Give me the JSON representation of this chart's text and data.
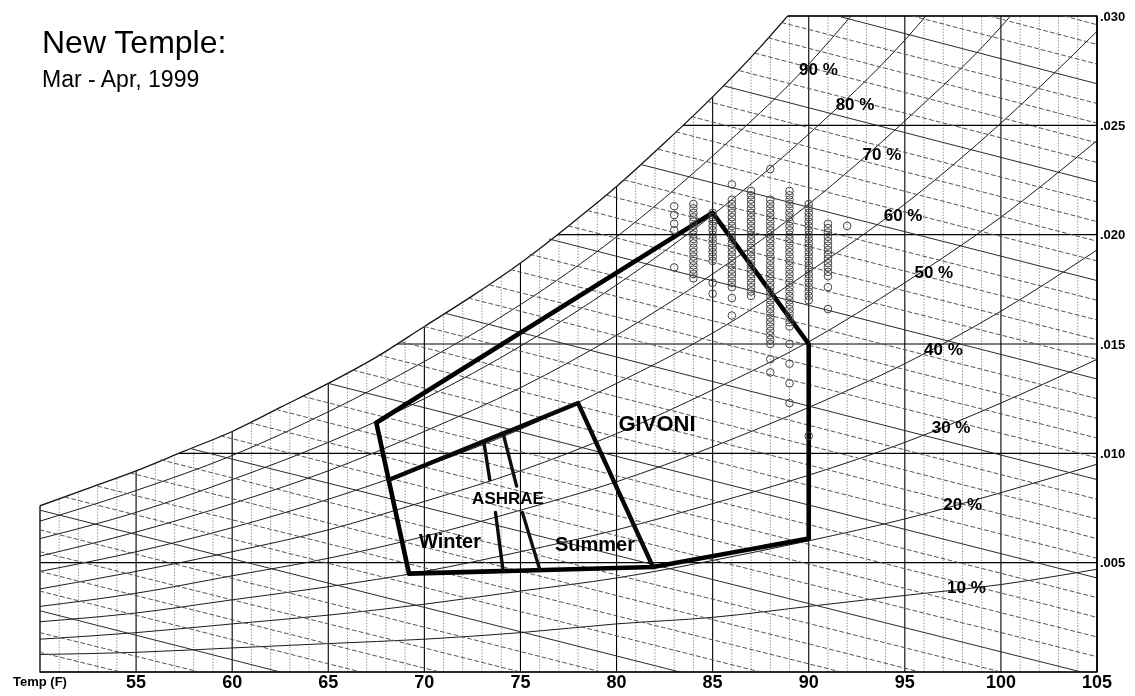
{
  "chart_data": {
    "type": "scatter",
    "title": "New Temple:",
    "subtitle": "Mar - Apr, 1999",
    "xlabel": "Temp (F)",
    "xlim": [
      50,
      105
    ],
    "ylim": [
      0,
      0.03
    ],
    "xticks": [
      {
        "value": 51,
        "label": null
      },
      {
        "value": 52,
        "label": null
      },
      {
        "value": 53,
        "label": null
      },
      {
        "value": 54,
        "label": null
      },
      55,
      {
        "value": 56,
        "label": null
      },
      {
        "value": 57,
        "label": null
      },
      {
        "value": 58,
        "label": null
      },
      {
        "value": 59,
        "label": null
      },
      60,
      {
        "value": 61,
        "label": null
      },
      {
        "value": 62,
        "label": null
      },
      {
        "value": 63,
        "label": null
      },
      {
        "value": 64,
        "label": null
      },
      65,
      {
        "value": 66,
        "label": null
      },
      {
        "value": 67,
        "label": null
      },
      {
        "value": 68,
        "label": null
      },
      {
        "value": 69,
        "label": null
      },
      70,
      {
        "value": 71,
        "label": null
      },
      {
        "value": 72,
        "label": null
      },
      {
        "value": 73,
        "label": null
      },
      {
        "value": 74,
        "label": null
      },
      75,
      {
        "value": 76,
        "label": null
      },
      {
        "value": 77,
        "label": null
      },
      {
        "value": 78,
        "label": null
      },
      {
        "value": 79,
        "label": null
      },
      80,
      {
        "value": 81,
        "label": null
      },
      {
        "value": 82,
        "label": null
      },
      {
        "value": 83,
        "label": null
      },
      {
        "value": 84,
        "label": null
      },
      85,
      {
        "value": 86,
        "label": null
      },
      {
        "value": 87,
        "label": null
      },
      {
        "value": 88,
        "label": null
      },
      {
        "value": 89,
        "label": null
      },
      90,
      {
        "value": 91,
        "label": null
      },
      {
        "value": 92,
        "label": null
      },
      {
        "value": 93,
        "label": null
      },
      {
        "value": 94,
        "label": null
      },
      95,
      {
        "value": 96,
        "label": null
      },
      {
        "value": 97,
        "label": null
      },
      {
        "value": 98,
        "label": null
      },
      {
        "value": 99,
        "label": null
      },
      100,
      {
        "value": 101,
        "label": null
      },
      {
        "value": 102,
        "label": null
      },
      {
        "value": 103,
        "label": null
      },
      {
        "value": 104,
        "label": null
      },
      105
    ],
    "yticks": [
      {
        "value": 0.005,
        "label": ".005"
      },
      {
        "value": 0.01,
        "label": ".010"
      },
      {
        "value": 0.015,
        "label": ".015"
      },
      {
        "value": 0.02,
        "label": ".020"
      },
      {
        "value": 0.025,
        "label": ".025"
      },
      {
        "value": 0.03,
        "label": ".030"
      }
    ],
    "grid": true,
    "series": [
      {
        "type": "line",
        "color": "#141414",
        "x": [
          50,
          52.5,
          55,
          57.5,
          60,
          62.5,
          65,
          67.5,
          70,
          72.5,
          75,
          77.5,
          80,
          82.5,
          85,
          87.5,
          88.9
        ],
        "values": [
          0.0076,
          0.0084,
          0.0092,
          0.0101,
          0.011,
          0.0121,
          0.0132,
          0.0144,
          0.0158,
          0.0172,
          0.0187,
          0.0204,
          0.0222,
          0.0242,
          0.0263,
          0.0286,
          0.03
        ]
      },
      {
        "type": "line",
        "color": "#1c1c1c",
        "x": [
          50,
          55,
          60,
          65,
          70,
          75,
          80,
          85,
          90,
          95,
          100,
          105
        ],
        "values": [
          0.0008,
          0.0009,
          0.0011,
          0.0013,
          0.0015,
          0.0018,
          0.0022,
          0.0025,
          0.003,
          0.0035,
          0.004,
          0.0047
        ]
      },
      {
        "type": "line",
        "color": "#1c1c1c",
        "x": [
          50,
          55,
          60,
          65,
          70,
          75,
          80,
          85,
          90,
          95,
          100,
          105
        ],
        "values": [
          0.0015,
          0.0018,
          0.0022,
          0.0026,
          0.0031,
          0.0037,
          0.0043,
          0.0051,
          0.006,
          0.007,
          0.0082,
          0.0095
        ]
      },
      {
        "type": "line",
        "color": "#1c1c1c",
        "x": [
          50,
          55,
          60,
          65,
          70,
          75,
          80,
          85,
          90,
          95,
          100,
          105
        ],
        "values": [
          0.0023,
          0.0027,
          0.0033,
          0.0039,
          0.0046,
          0.0055,
          0.0065,
          0.0077,
          0.009,
          0.0105,
          0.0123,
          0.0143
        ]
      },
      {
        "type": "line",
        "color": "#1c1c1c",
        "x": [
          50,
          55,
          60,
          65,
          70,
          75,
          80,
          85,
          90,
          95,
          100,
          105
        ],
        "values": [
          0.003,
          0.0036,
          0.0044,
          0.0052,
          0.0062,
          0.0074,
          0.0087,
          0.0103,
          0.0121,
          0.0141,
          0.0165,
          0.0193
        ]
      },
      {
        "type": "line",
        "color": "#1c1c1c",
        "x": [
          50,
          55,
          60,
          65,
          70,
          75,
          80,
          85,
          90,
          95,
          100,
          105
        ],
        "values": [
          0.0038,
          0.0046,
          0.0055,
          0.0065,
          0.0078,
          0.0092,
          0.0109,
          0.0129,
          0.0151,
          0.0178,
          0.0208,
          0.0243
        ]
      },
      {
        "type": "line",
        "color": "#1c1c1c",
        "x": [
          50,
          55,
          60,
          65,
          70,
          75,
          80,
          85,
          90,
          95,
          100,
          105
        ],
        "values": [
          0.0046,
          0.0055,
          0.0066,
          0.0079,
          0.0094,
          0.0111,
          0.0132,
          0.0155,
          0.0183,
          0.0214,
          0.0251,
          0.0293
        ]
      },
      {
        "type": "line",
        "color": "#1c1c1c",
        "x": [
          50,
          55,
          60,
          65,
          70,
          75,
          80,
          85,
          90,
          95,
          100,
          100.5
        ],
        "values": [
          0.0053,
          0.0064,
          0.0077,
          0.0092,
          0.011,
          0.013,
          0.0154,
          0.0182,
          0.0214,
          0.0252,
          0.0295,
          0.03
        ]
      },
      {
        "type": "line",
        "color": "#1c1c1c",
        "x": [
          50,
          55,
          60,
          65,
          70,
          75,
          80,
          85,
          90,
          95,
          96.1
        ],
        "values": [
          0.0061,
          0.0073,
          0.0088,
          0.0105,
          0.0125,
          0.0149,
          0.0177,
          0.0209,
          0.0246,
          0.0289,
          0.03
        ]
      },
      {
        "type": "line",
        "color": "#1c1c1c",
        "x": [
          50,
          55,
          60,
          65,
          70,
          75,
          80,
          85,
          90,
          92.2
        ],
        "values": [
          0.0069,
          0.0083,
          0.0099,
          0.0119,
          0.0142,
          0.0168,
          0.0199,
          0.0236,
          0.0278,
          0.03
        ]
      },
      {
        "type": "line",
        "color": "#2a2a2a",
        "x": [
          50,
          62.5
        ],
        "values": [
          0.0028,
          0
        ]
      },
      {
        "type": "line",
        "color": "#2a2a2a",
        "x": [
          50,
          83.3
        ],
        "values": [
          0.0074,
          0
        ]
      },
      {
        "type": "line",
        "color": "#2a2a2a",
        "x": [
          57.9,
          104.2
        ],
        "values": [
          0.0102,
          0
        ]
      },
      {
        "type": "line",
        "color": "#2a2a2a",
        "x": [
          65,
          105
        ],
        "values": [
          0.0132,
          0.0043
        ]
      },
      {
        "type": "line",
        "color": "#2a2a2a",
        "x": [
          71.1,
          105
        ],
        "values": [
          0.0164,
          0.0088
        ]
      },
      {
        "type": "line",
        "color": "#2a2a2a",
        "x": [
          76.5,
          105
        ],
        "values": [
          0.0198,
          0.0134
        ]
      },
      {
        "type": "line",
        "color": "#2a2a2a",
        "x": [
          81.3,
          105
        ],
        "values": [
          0.0232,
          0.0179
        ]
      },
      {
        "type": "line",
        "color": "#2a2a2a",
        "x": [
          85.6,
          105
        ],
        "values": [
          0.0268,
          0.0224
        ]
      },
      {
        "type": "line",
        "color": "#2a2a2a",
        "x": [
          91.5,
          105
        ],
        "values": [
          0.03,
          0.0269
        ]
      },
      {
        "type": "line",
        "line_style": "dashed",
        "color": "#555555",
        "x": [
          50,
          54.2
        ],
        "values": [
          0.0009,
          0
        ]
      },
      {
        "type": "line",
        "line_style": "dashed",
        "color": "#555555",
        "x": [
          50,
          58.3
        ],
        "values": [
          0.0018,
          0
        ]
      },
      {
        "type": "line",
        "line_style": "dashed",
        "color": "#555555",
        "x": [
          50,
          66.7
        ],
        "values": [
          0.0037,
          0
        ]
      },
      {
        "type": "line",
        "line_style": "dashed",
        "color": "#555555",
        "x": [
          50,
          70.8
        ],
        "values": [
          0.0046,
          0
        ]
      },
      {
        "type": "line",
        "line_style": "dashed",
        "color": "#555555",
        "x": [
          50,
          75
        ],
        "values": [
          0.0055,
          0
        ]
      },
      {
        "type": "line",
        "line_style": "dashed",
        "color": "#555555",
        "x": [
          50,
          79.2
        ],
        "values": [
          0.0065,
          0
        ]
      },
      {
        "type": "line",
        "line_style": "dashed",
        "color": "#555555",
        "x": [
          51.3,
          87.5
        ],
        "values": [
          0.008,
          0
        ]
      },
      {
        "type": "line",
        "line_style": "dashed",
        "color": "#555555",
        "x": [
          53,
          91.7
        ],
        "values": [
          0.0085,
          0
        ]
      },
      {
        "type": "line",
        "line_style": "dashed",
        "color": "#555555",
        "x": [
          54.7,
          95.8
        ],
        "values": [
          0.0091,
          0
        ]
      },
      {
        "type": "line",
        "line_style": "dashed",
        "color": "#555555",
        "x": [
          56.3,
          100
        ],
        "values": [
          0.0097,
          0
        ]
      },
      {
        "type": "line",
        "line_style": "dashed",
        "color": "#555555",
        "x": [
          59.4,
          105
        ],
        "values": [
          0.0108,
          0.0007
        ]
      },
      {
        "type": "line",
        "line_style": "dashed",
        "color": "#555555",
        "x": [
          60.9,
          105
        ],
        "values": [
          0.0114,
          0.0016
        ]
      },
      {
        "type": "line",
        "line_style": "dashed",
        "color": "#555555",
        "x": [
          62.3,
          105
        ],
        "values": [
          0.012,
          0.0025
        ]
      },
      {
        "type": "line",
        "line_style": "dashed",
        "color": "#555555",
        "x": [
          63.7,
          105
        ],
        "values": [
          0.0126,
          0.0034
        ]
      },
      {
        "type": "line",
        "line_style": "dashed",
        "color": "#555555",
        "x": [
          66.3,
          105
        ],
        "values": [
          0.0138,
          0.0052
        ]
      },
      {
        "type": "line",
        "line_style": "dashed",
        "color": "#555555",
        "x": [
          67.6,
          105
        ],
        "values": [
          0.0145,
          0.0061
        ]
      },
      {
        "type": "line",
        "line_style": "dashed",
        "color": "#555555",
        "x": [
          68.8,
          105
        ],
        "values": [
          0.0151,
          0.007
        ]
      },
      {
        "type": "line",
        "line_style": "dashed",
        "color": "#555555",
        "x": [
          70,
          105
        ],
        "values": [
          0.0158,
          0.0079
        ]
      },
      {
        "type": "line",
        "line_style": "dashed",
        "color": "#555555",
        "x": [
          72.3,
          105
        ],
        "values": [
          0.0171,
          0.0098
        ]
      },
      {
        "type": "line",
        "line_style": "dashed",
        "color": "#555555",
        "x": [
          73.4,
          105
        ],
        "values": [
          0.0177,
          0.0107
        ]
      },
      {
        "type": "line",
        "line_style": "dashed",
        "color": "#555555",
        "x": [
          74.5,
          105
        ],
        "values": [
          0.0184,
          0.0116
        ]
      },
      {
        "type": "line",
        "line_style": "dashed",
        "color": "#555555",
        "x": [
          75.5,
          105
        ],
        "values": [
          0.0191,
          0.0125
        ]
      },
      {
        "type": "line",
        "line_style": "dashed",
        "color": "#555555",
        "x": [
          77.5,
          105
        ],
        "values": [
          0.0204,
          0.0143
        ]
      },
      {
        "type": "line",
        "line_style": "dashed",
        "color": "#555555",
        "x": [
          78.5,
          105
        ],
        "values": [
          0.0211,
          0.0152
        ]
      },
      {
        "type": "line",
        "line_style": "dashed",
        "color": "#555555",
        "x": [
          79.5,
          105
        ],
        "values": [
          0.0218,
          0.0161
        ]
      },
      {
        "type": "line",
        "line_style": "dashed",
        "color": "#555555",
        "x": [
          80.4,
          105
        ],
        "values": [
          0.0225,
          0.017
        ]
      },
      {
        "type": "line",
        "line_style": "dashed",
        "color": "#555555",
        "x": [
          82.2,
          105
        ],
        "values": [
          0.0239,
          0.0188
        ]
      },
      {
        "type": "line",
        "line_style": "dashed",
        "color": "#555555",
        "x": [
          83.1,
          105
        ],
        "values": [
          0.0247,
          0.0197
        ]
      },
      {
        "type": "line",
        "line_style": "dashed",
        "color": "#555555",
        "x": [
          83.9,
          105
        ],
        "values": [
          0.0254,
          0.0206
        ]
      },
      {
        "type": "line",
        "line_style": "dashed",
        "color": "#555555",
        "x": [
          84.7,
          105
        ],
        "values": [
          0.0261,
          0.0215
        ]
      },
      {
        "type": "line",
        "line_style": "dashed",
        "color": "#555555",
        "x": [
          86.4,
          105
        ],
        "values": [
          0.0275,
          0.0233
        ]
      },
      {
        "type": "line",
        "line_style": "dashed",
        "color": "#555555",
        "x": [
          87.2,
          105
        ],
        "values": [
          0.0283,
          0.0242
        ]
      },
      {
        "type": "line",
        "line_style": "dashed",
        "color": "#555555",
        "x": [
          87.9,
          105
        ],
        "values": [
          0.029,
          0.0251
        ]
      },
      {
        "type": "line",
        "line_style": "dashed",
        "color": "#555555",
        "x": [
          88.6,
          105
        ],
        "values": [
          0.0297,
          0.026
        ]
      },
      {
        "type": "line",
        "line_style": "dashed",
        "color": "#555555",
        "x": [
          95.4,
          105
        ],
        "values": [
          0.03,
          0.0278
        ]
      },
      {
        "type": "line",
        "line_style": "dashed",
        "color": "#555555",
        "x": [
          99.4,
          105
        ],
        "values": [
          0.03,
          0.0287
        ]
      },
      {
        "type": "line",
        "line_style": "dashed",
        "color": "#555555",
        "x": [
          103.3,
          105
        ],
        "values": [
          0.03,
          0.0296
        ]
      },
      {
        "type": "line",
        "color": "#000000",
        "x": [
          67.5,
          85,
          90,
          90,
          null,
          69.2,
          81.9,
          90,
          null,
          67.5,
          69.2
        ],
        "values": [
          0.0114,
          0.021,
          0.015,
          0.0061,
          null,
          0.0045,
          0.0048,
          0.0061,
          null,
          0.0114,
          0.0045
        ]
      },
      {
        "type": "line",
        "color": "#080808",
        "x": [
          68.2,
          78,
          81.9
        ],
        "values": [
          0.0088,
          0.0123,
          0.0048
        ]
      },
      {
        "type": "line",
        "color": "#0c0c0c",
        "x": [
          73.1,
          73.4,
          null,
          73.7,
          74.1
        ],
        "values": [
          0.0105,
          0.0088,
          null,
          0.0073,
          0.0046
        ]
      },
      {
        "type": "line",
        "color": "#101010",
        "x": [
          74.1,
          74.8,
          null,
          75.1,
          76.0
        ],
        "values": [
          0.0109,
          0.0085,
          null,
          0.0073,
          0.0047
        ]
      },
      {
        "marker": "circle",
        "color": "#444444",
        "x": [
          83,
          83,
          83,
          83,
          83,
          84,
          84,
          84,
          84,
          84,
          84,
          84,
          84,
          84,
          84,
          84,
          84,
          84,
          84,
          84,
          84,
          84,
          84,
          85,
          85,
          85,
          85,
          85,
          85,
          85,
          85,
          85,
          85,
          85,
          85,
          85,
          85,
          86,
          86,
          86,
          86,
          86,
          86,
          86,
          86,
          86,
          86,
          86,
          86,
          86,
          86,
          86,
          86,
          86,
          86,
          86,
          86,
          86,
          86,
          86,
          86,
          87,
          87,
          87,
          87,
          87,
          87,
          87,
          87,
          87,
          87,
          87,
          87,
          87,
          87,
          87,
          87,
          87,
          87,
          87,
          87,
          87,
          87,
          87,
          87,
          87,
          88,
          88,
          88,
          88,
          88,
          88,
          88,
          88,
          88,
          88,
          88,
          88,
          88,
          88,
          88,
          88,
          88,
          88,
          88,
          88,
          88,
          88,
          88,
          88,
          88,
          88,
          88,
          88,
          88,
          88,
          88,
          88,
          88,
          88,
          88,
          88,
          88,
          89,
          89,
          89,
          89,
          89,
          89,
          89,
          89,
          89,
          89,
          89,
          89,
          89,
          89,
          89,
          89,
          89,
          89,
          89,
          89,
          89,
          89,
          89,
          89,
          89,
          89,
          89,
          89,
          89,
          89,
          89,
          89,
          89,
          89,
          89,
          89,
          90,
          90,
          90,
          90,
          90,
          90,
          90,
          90,
          90,
          90,
          90,
          90,
          90,
          90,
          90,
          90,
          90,
          90,
          90,
          90,
          90,
          90,
          90,
          90,
          91,
          91,
          91,
          91,
          91,
          91,
          91,
          91,
          91,
          91,
          91,
          91,
          91,
          91,
          91,
          92
        ],
        "values": [
          0.0213,
          0.0209,
          0.0205,
          0.0202,
          0.0185,
          0.0214,
          0.0212,
          0.021,
          0.0208,
          0.0206,
          0.0204,
          0.0202,
          0.02,
          0.0198,
          0.0196,
          0.0194,
          0.0192,
          0.019,
          0.0188,
          0.0186,
          0.0184,
          0.0182,
          0.018,
          0.021,
          0.0208,
          0.0206,
          0.0204,
          0.0202,
          0.02,
          0.0198,
          0.0196,
          0.0194,
          0.0192,
          0.019,
          0.0188,
          0.0178,
          0.0173,
          0.0223,
          0.0216,
          0.0214,
          0.0212,
          0.021,
          0.0208,
          0.0206,
          0.0204,
          0.0202,
          0.02,
          0.0198,
          0.0196,
          0.0194,
          0.0192,
          0.019,
          0.0188,
          0.0186,
          0.0184,
          0.0182,
          0.018,
          0.0178,
          0.0176,
          0.0171,
          0.0163,
          0.022,
          0.0218,
          0.0216,
          0.0214,
          0.0212,
          0.021,
          0.0208,
          0.0206,
          0.0204,
          0.0202,
          0.02,
          0.0198,
          0.0196,
          0.0194,
          0.0192,
          0.019,
          0.0188,
          0.0186,
          0.0184,
          0.0182,
          0.018,
          0.0178,
          0.0176,
          0.0174,
          0.0172,
          0.023,
          0.0216,
          0.0214,
          0.0212,
          0.021,
          0.0208,
          0.0206,
          0.0204,
          0.0202,
          0.02,
          0.0198,
          0.0196,
          0.0194,
          0.0192,
          0.019,
          0.0188,
          0.0186,
          0.0184,
          0.0182,
          0.018,
          0.0178,
          0.0176,
          0.0174,
          0.0172,
          0.017,
          0.0168,
          0.0166,
          0.0164,
          0.0162,
          0.016,
          0.0158,
          0.0156,
          0.0154,
          0.0152,
          0.015,
          0.0143,
          0.0137,
          0.022,
          0.0218,
          0.0216,
          0.0214,
          0.0212,
          0.021,
          0.0208,
          0.0206,
          0.0204,
          0.0202,
          0.02,
          0.0198,
          0.0196,
          0.0194,
          0.0192,
          0.019,
          0.0188,
          0.0186,
          0.0184,
          0.0182,
          0.018,
          0.0178,
          0.0176,
          0.0174,
          0.0172,
          0.017,
          0.0168,
          0.0166,
          0.0164,
          0.0162,
          0.016,
          0.0158,
          0.015,
          0.0141,
          0.0132,
          0.0123,
          0.0214,
          0.0212,
          0.021,
          0.0208,
          0.0206,
          0.0204,
          0.0202,
          0.02,
          0.0198,
          0.0196,
          0.0194,
          0.0192,
          0.019,
          0.0188,
          0.0186,
          0.0184,
          0.0182,
          0.018,
          0.0178,
          0.0176,
          0.0174,
          0.0172,
          0.017,
          0.0108,
          0.0205,
          0.0203,
          0.0201,
          0.0199,
          0.0197,
          0.0195,
          0.0193,
          0.0191,
          0.0189,
          0.0187,
          0.0185,
          0.0183,
          0.0181,
          0.0176,
          0.0166,
          0.0204
        ]
      }
    ],
    "annotations": [
      {
        "text": "90 %",
        "x": 89.5,
        "y": 0.0274
      },
      {
        "text": "80 %",
        "x": 91.4,
        "y": 0.0258
      },
      {
        "text": "70 %",
        "x": 92.8,
        "y": 0.0235
      },
      {
        "text": "60 %",
        "x": 93.9,
        "y": 0.0207
      },
      {
        "text": "50 %",
        "x": 95.5,
        "y": 0.0181
      },
      {
        "text": "40 %",
        "x": 96.0,
        "y": 0.0146
      },
      {
        "text": "30 %",
        "x": 96.4,
        "y": 0.011
      },
      {
        "text": "20 %",
        "x": 97.0,
        "y": 0.0075
      },
      {
        "text": "10 %",
        "x": 97.2,
        "y": 0.0037
      },
      "GIVONI",
      "ASHRAE",
      "Winter",
      "Summer"
    ]
  }
}
